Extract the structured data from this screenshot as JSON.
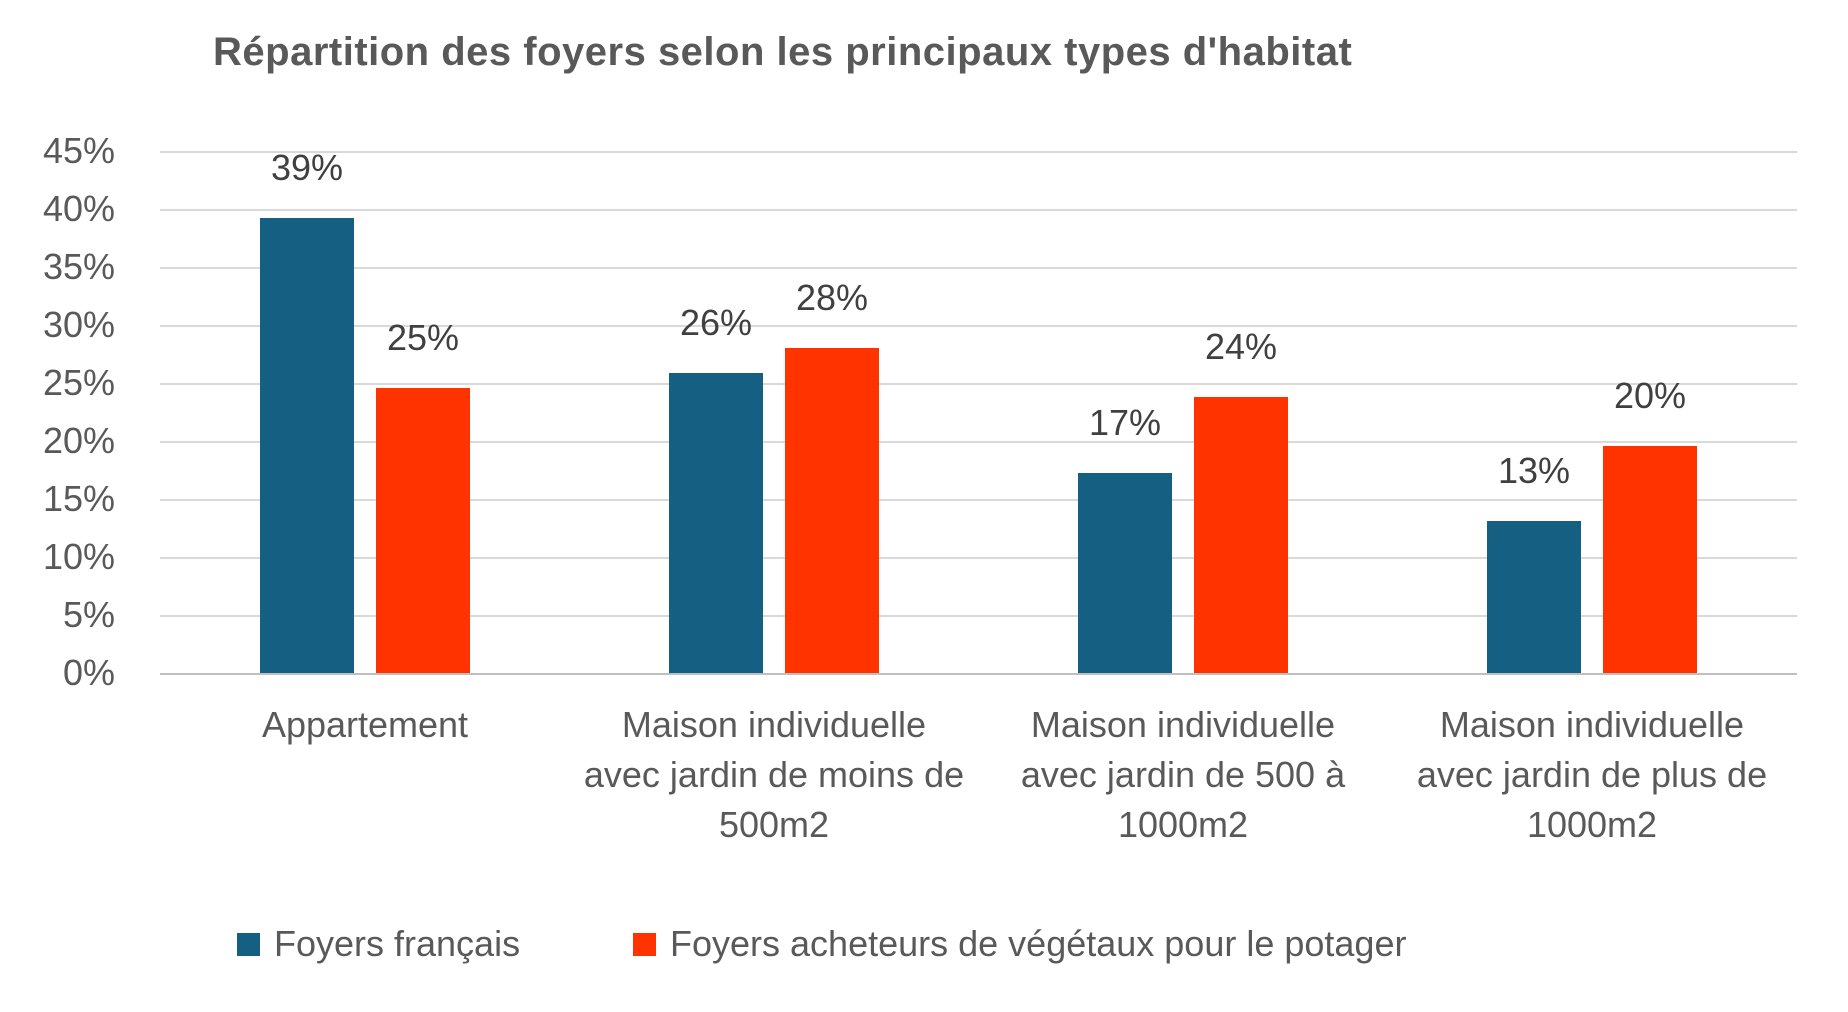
{
  "chart_data": {
    "type": "bar",
    "title": "Répartition des foyers selon les principaux types d'habitat",
    "categories": [
      "Appartement",
      "Maison individuelle avec jardin de moins de 500m2",
      "Maison individuelle avec jardin de 500 à 1000m2",
      "Maison individuelle avec jardin de plus de 1000m2"
    ],
    "series": [
      {
        "name": "Foyers français",
        "color": "#156082",
        "values": [
          39,
          26,
          17,
          13
        ],
        "labels": [
          "39%",
          "26%",
          "17%",
          "13%"
        ],
        "values_precise": [
          39.2,
          25.9,
          17.2,
          13.1
        ]
      },
      {
        "name": "Foyers acheteurs de végétaux pour le potager",
        "color": "#FF3300",
        "values": [
          25,
          28,
          24,
          20
        ],
        "labels": [
          "25%",
          "28%",
          "24%",
          "20%"
        ],
        "values_precise": [
          24.6,
          28.0,
          23.8,
          19.6
        ]
      }
    ],
    "y_axis": {
      "min": 0,
      "max": 45,
      "step": 5,
      "tick_labels": [
        "0%",
        "5%",
        "10%",
        "15%",
        "20%",
        "25%",
        "30%",
        "35%",
        "40%",
        "45%"
      ]
    },
    "grid": true,
    "legend_position": "bottom",
    "data_labels": true
  },
  "colors": {
    "background": "#ffffff",
    "gridline": "#d9d9d9",
    "axis_line": "#bfbfbf",
    "text": "#595959",
    "data_label_text": "#404040",
    "series1": "#156082",
    "series2": "#FF3300"
  }
}
